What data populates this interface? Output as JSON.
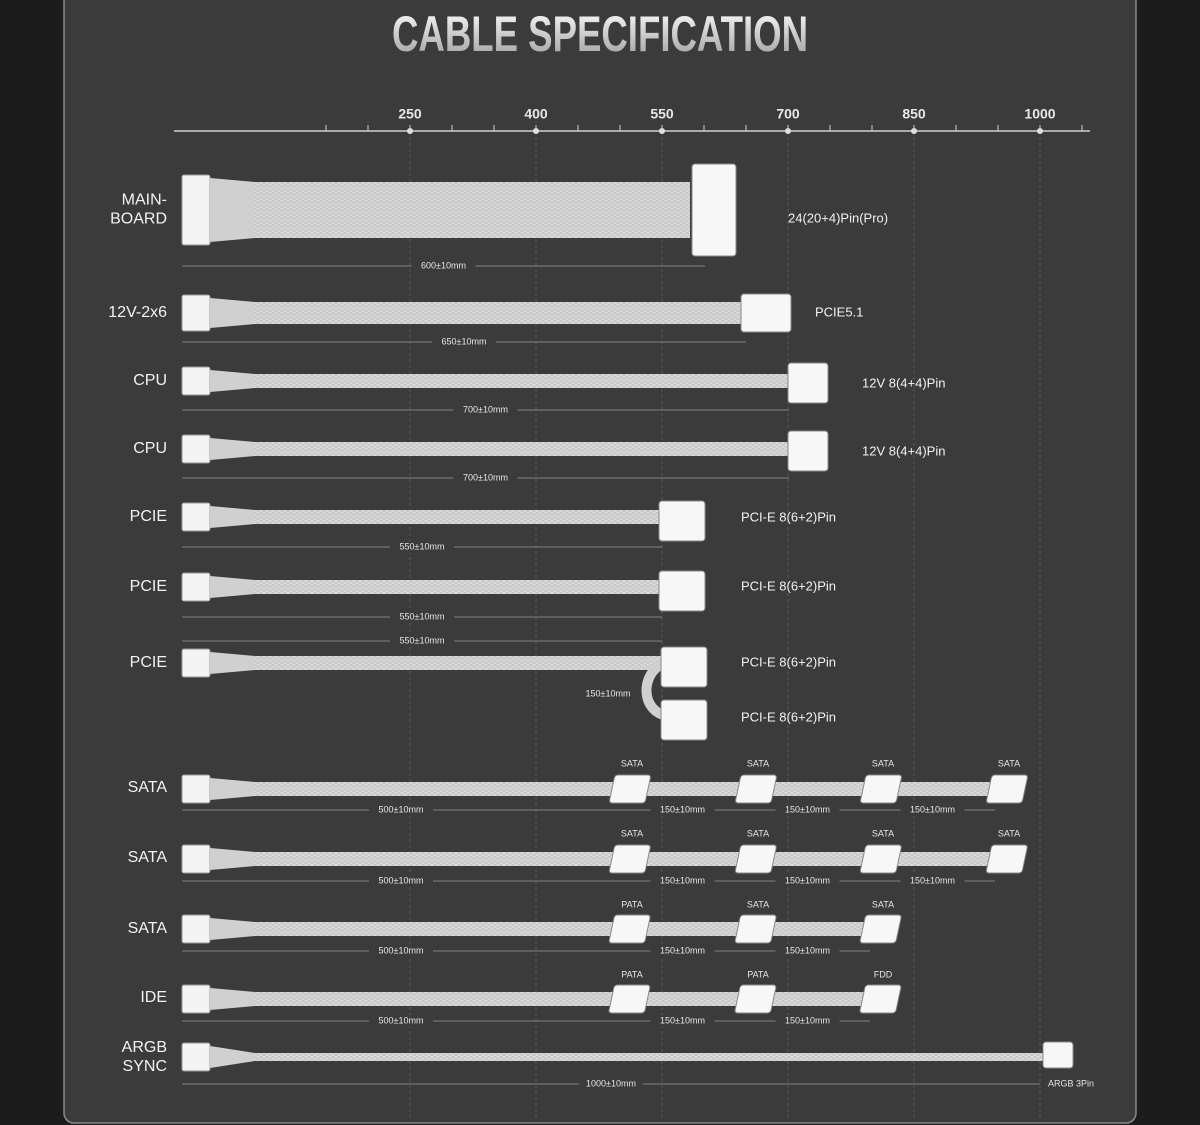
{
  "header": {
    "title": "CABLE SPECIFICATION"
  },
  "axis": {
    "ticks": [
      250,
      400,
      550,
      700,
      850,
      1000
    ]
  },
  "cables": [
    {
      "label": [
        "MAIN-",
        "BOARD"
      ],
      "plugs": [
        "24(20+4)Pin(Pro)"
      ],
      "lengths": [
        "600±10mm"
      ]
    },
    {
      "label": [
        "12V-2x6"
      ],
      "plugs": [
        "PCIE5.1"
      ],
      "lengths": [
        "650±10mm"
      ]
    },
    {
      "label": [
        "CPU"
      ],
      "plugs": [
        "12V 8(4+4)Pin"
      ],
      "lengths": [
        "700±10mm"
      ]
    },
    {
      "label": [
        "CPU"
      ],
      "plugs": [
        "12V 8(4+4)Pin"
      ],
      "lengths": [
        "700±10mm"
      ]
    },
    {
      "label": [
        "PCIE"
      ],
      "plugs": [
        "PCI-E 8(6+2)Pin"
      ],
      "lengths": [
        "550±10mm"
      ]
    },
    {
      "label": [
        "PCIE"
      ],
      "plugs": [
        "PCI-E 8(6+2)Pin"
      ],
      "lengths": [
        "550±10mm"
      ]
    },
    {
      "label": [
        "PCIE"
      ],
      "plugs": [
        "PCI-E 8(6+2)Pin",
        "PCI-E 8(6+2)Pin"
      ],
      "lengths": [
        "550±10mm",
        "150±10mm"
      ]
    },
    {
      "label": [
        "SATA"
      ],
      "plugs": [
        "SATA",
        "SATA",
        "SATA",
        "SATA"
      ],
      "lengths": [
        "500±10mm",
        "150±10mm",
        "150±10mm",
        "150±10mm"
      ]
    },
    {
      "label": [
        "SATA"
      ],
      "plugs": [
        "SATA",
        "SATA",
        "SATA",
        "SATA"
      ],
      "lengths": [
        "500±10mm",
        "150±10mm",
        "150±10mm",
        "150±10mm"
      ]
    },
    {
      "label": [
        "SATA"
      ],
      "plugs": [
        "PATA",
        "SATA",
        "SATA"
      ],
      "lengths": [
        "500±10mm",
        "150±10mm",
        "150±10mm"
      ]
    },
    {
      "label": [
        "IDE"
      ],
      "plugs": [
        "PATA",
        "PATA",
        "FDD"
      ],
      "lengths": [
        "500±10mm",
        "150±10mm",
        "150±10mm"
      ]
    },
    {
      "label": [
        "ARGB",
        "SYNC"
      ],
      "plugs": [
        "ARGB 3Pin"
      ],
      "lengths": [
        "1000±10mm"
      ]
    }
  ]
}
